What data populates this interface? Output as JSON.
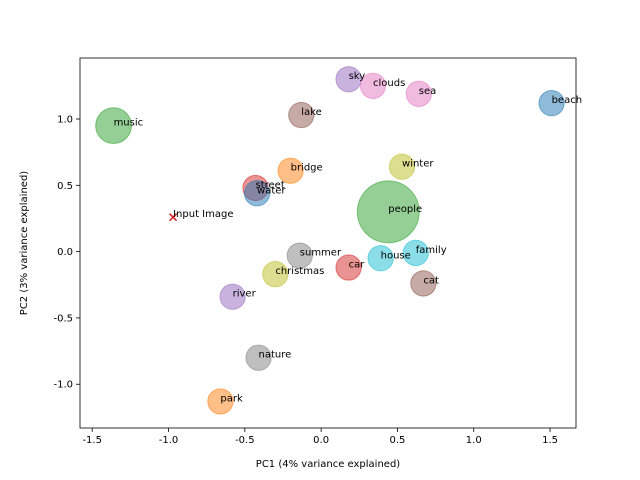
{
  "chart_data": {
    "type": "scatter",
    "xlabel": "PC1 (4% variance explained)",
    "ylabel": "PC2 (3% variance explained)",
    "xlim": [
      -1.58,
      1.67
    ],
    "ylim": [
      -1.33,
      1.46
    ],
    "xticks": [
      "-1.5",
      "-1.0",
      "-0.5",
      "0.0",
      "0.5",
      "1.0",
      "1.5"
    ],
    "xtick_values": [
      -1.5,
      -1.0,
      -0.5,
      0.0,
      0.5,
      1.0,
      1.5
    ],
    "yticks": [
      "-1.0",
      "-0.5",
      "0.0",
      "0.5",
      "1.0"
    ],
    "ytick_values": [
      -1.0,
      -0.5,
      0.0,
      0.5,
      1.0
    ],
    "grid": false,
    "points": [
      {
        "label": "beach",
        "x": 1.51,
        "y": 1.12,
        "size": 1,
        "color": "#1f77b4"
      },
      {
        "label": "sky",
        "x": 0.18,
        "y": 1.3,
        "size": 1,
        "color": "#9467bd"
      },
      {
        "label": "clouds",
        "x": 0.34,
        "y": 1.25,
        "size": 1,
        "color": "#e377c2"
      },
      {
        "label": "sea",
        "x": 0.64,
        "y": 1.19,
        "size": 1,
        "color": "#e377c2"
      },
      {
        "label": "lake",
        "x": -0.13,
        "y": 1.03,
        "size": 1,
        "color": "#8c564b"
      },
      {
        "label": "music",
        "x": -1.36,
        "y": 0.95,
        "size": 2,
        "color": "#2ca02c"
      },
      {
        "label": "winter",
        "x": 0.53,
        "y": 0.64,
        "size": 1,
        "color": "#bcbd22"
      },
      {
        "label": "bridge",
        "x": -0.2,
        "y": 0.61,
        "size": 1,
        "color": "#ff7f0e"
      },
      {
        "label": "street",
        "x": -0.43,
        "y": 0.48,
        "size": 1,
        "color": "#d62728"
      },
      {
        "label": "water",
        "x": -0.42,
        "y": 0.44,
        "size": 1,
        "color": "#1f77b4"
      },
      {
        "label": "people",
        "x": 0.44,
        "y": 0.3,
        "size": 6,
        "color": "#2ca02c"
      },
      {
        "label": "summer",
        "x": -0.14,
        "y": -0.03,
        "size": 1,
        "color": "#7f7f7f"
      },
      {
        "label": "family",
        "x": 0.62,
        "y": -0.01,
        "size": 1,
        "color": "#17becf"
      },
      {
        "label": "house",
        "x": 0.39,
        "y": -0.05,
        "size": 1,
        "color": "#17becf"
      },
      {
        "label": "car",
        "x": 0.18,
        "y": -0.12,
        "size": 1,
        "color": "#d62728"
      },
      {
        "label": "christmas",
        "x": -0.3,
        "y": -0.17,
        "size": 1,
        "color": "#bcbd22"
      },
      {
        "label": "cat",
        "x": 0.67,
        "y": -0.24,
        "size": 1,
        "color": "#8c564b"
      },
      {
        "label": "river",
        "x": -0.58,
        "y": -0.34,
        "size": 1,
        "color": "#9467bd"
      },
      {
        "label": "nature",
        "x": -0.41,
        "y": -0.8,
        "size": 1,
        "color": "#7f7f7f"
      },
      {
        "label": "park",
        "x": -0.66,
        "y": -1.13,
        "size": 1,
        "color": "#ff7f0e"
      }
    ],
    "input_point": {
      "label": "Input Image",
      "x": -0.97,
      "y": 0.26,
      "marker": "x",
      "color": "#d62728"
    }
  }
}
